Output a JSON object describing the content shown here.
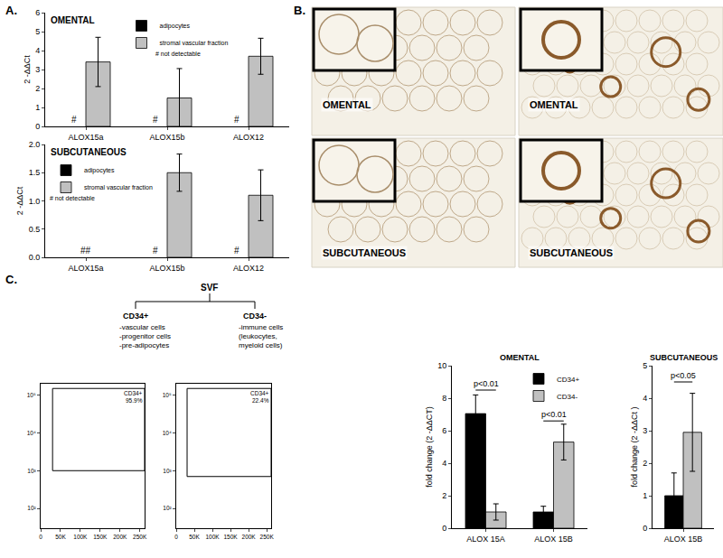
{
  "panel_labels": [
    "A.",
    "B.",
    "C."
  ],
  "images": [
    {
      "label": "OMENTAL"
    },
    {
      "label": "OMENTAL"
    },
    {
      "label": "SUBCUTANEOUS"
    },
    {
      "label": "SUBCUTANEOUS"
    }
  ],
  "diagram": {
    "root": "SVF",
    "branches": [
      {
        "label": "CD34+",
        "items": [
          "-vascular cells",
          "-progenitor cells",
          "-pre-adipocytes"
        ]
      },
      {
        "label": "CD34-",
        "items": [
          "-immune cells",
          "(leukocytes,",
          "myeloid cells)"
        ]
      }
    ]
  },
  "chart_data": [
    {
      "type": "bar",
      "title": "OMENTAL",
      "y_label": "2 -ΔΔCt",
      "categories": [
        "ALOX15a",
        "ALOX15b",
        "ALOX12"
      ],
      "series": [
        {
          "name": "adipocytes",
          "color": "#000000",
          "values": [
            null,
            null,
            null
          ],
          "errors": [
            null,
            null,
            null
          ]
        },
        {
          "name": "stromal vascular fraction",
          "color": "#c0c0c0",
          "values": [
            3.4,
            1.5,
            3.7
          ],
          "errors": [
            1.3,
            1.55,
            0.95
          ]
        }
      ],
      "ylim": [
        0,
        6
      ],
      "yticks": [
        0,
        1,
        2,
        3,
        4,
        5,
        6
      ],
      "legend": "top",
      "note": "# not detectable",
      "annotations": [
        {
          "text": "#",
          "category": "ALOX15a",
          "series": "adipocytes"
        },
        {
          "text": "#",
          "category": "ALOX15b",
          "series": "adipocytes"
        },
        {
          "text": "#",
          "category": "ALOX12",
          "series": "adipocytes"
        }
      ]
    },
    {
      "type": "bar",
      "title": "SUBCUTANEOUS",
      "y_label": "2 -ΔΔCt",
      "categories": [
        "ALOX15a",
        "ALOX15b",
        "ALOX12"
      ],
      "series": [
        {
          "name": "adipocytes",
          "color": "#000000",
          "values": [
            null,
            null,
            null
          ],
          "errors": [
            null,
            null,
            null
          ]
        },
        {
          "name": "stromal vascular fraction",
          "color": "#c0c0c0",
          "values": [
            null,
            1.5,
            1.1
          ],
          "errors": [
            null,
            0.33,
            0.45
          ]
        }
      ],
      "ylim": [
        0,
        2
      ],
      "yticks": [
        {
          "value": 0,
          "label": "0.0"
        },
        0.5,
        {
          "value": 1,
          "label": "1.0"
        },
        1.5,
        {
          "value": 2,
          "label": "2.0"
        }
      ],
      "legend": "top left",
      "note": "# not detectable",
      "annotations": [
        {
          "text": "##",
          "category": "ALOX15a"
        },
        {
          "text": "#",
          "category": "ALOX15b",
          "series": "adipocytes"
        },
        {
          "text": "#",
          "category": "ALOX12",
          "series": "adipocytes"
        }
      ]
    },
    {
      "type": "bar",
      "title": "OMENTAL",
      "y_label": "fold change (2 -ΔΔCT)",
      "categories": [
        "ALOX 15A",
        "ALOX 15B"
      ],
      "series": [
        {
          "name": "CD34+",
          "color": "#000000",
          "values": [
            7.05,
            1.0
          ],
          "errors": [
            1.15,
            0.35
          ]
        },
        {
          "name": "CD34-",
          "color": "#c0c0c0",
          "values": [
            1.0,
            5.3
          ],
          "errors": [
            0.5,
            1.1
          ]
        }
      ],
      "ylim": [
        0,
        10
      ],
      "yticks": [
        0,
        2,
        4,
        6,
        8,
        10
      ],
      "legend": "top right",
      "comparisons": [
        {
          "category": "ALOX 15A",
          "y": 8.5,
          "text": "p<0.01"
        },
        {
          "category": "ALOX 15B",
          "y": 6.6,
          "text": "p<0.01"
        }
      ]
    },
    {
      "type": "bar",
      "title": "SUBCUTANEOUS",
      "y_label": "fold change (2 -ΔΔCt )",
      "categories": [
        "ALOX 15B"
      ],
      "series": [
        {
          "name": "CD34+",
          "color": "#000000",
          "values": [
            1.0
          ],
          "errors": [
            0.7
          ]
        },
        {
          "name": "CD34-",
          "color": "#c0c0c0",
          "values": [
            2.95
          ],
          "errors": [
            1.2
          ]
        }
      ],
      "ylim": [
        0,
        5
      ],
      "yticks": [
        0,
        1,
        2,
        3,
        4,
        5
      ],
      "comparisons": [
        {
          "category": "ALOX 15B",
          "y": 4.5,
          "text": "p<0.05"
        }
      ]
    },
    {
      "type": "scatter",
      "log": "y",
      "xlim": [
        0,
        262144
      ],
      "xticks": [
        0,
        {
          "value": 50000,
          "label": "50K"
        },
        {
          "value": 100000,
          "label": "100K"
        },
        {
          "value": 150000,
          "label": "150K"
        },
        {
          "value": 200000,
          "label": "200K"
        },
        {
          "value": 250000,
          "label": "250K"
        }
      ],
      "ylim": [
        30,
        200000
      ],
      "yticks": [
        {
          "value": 100,
          "label": "10²"
        },
        {
          "value": 1000,
          "label": "10³"
        },
        {
          "value": 10000,
          "label": "10⁴"
        },
        {
          "value": 100000,
          "label": "10⁵"
        }
      ],
      "gate": {
        "x": [
          30000,
          262144
        ],
        "y": [
          1000,
          150000
        ]
      },
      "gate_texts": [
        "CD34+",
        "95.9%"
      ]
    },
    {
      "type": "scatter",
      "log": "y",
      "xlim": [
        0,
        262144
      ],
      "xticks": [
        0,
        {
          "value": 50000,
          "label": "50K"
        },
        {
          "value": 100000,
          "label": "100K"
        },
        {
          "value": 150000,
          "label": "150K"
        },
        {
          "value": 200000,
          "label": "200K"
        },
        {
          "value": 250000,
          "label": "250K"
        }
      ],
      "ylim": [
        30,
        200000
      ],
      "yticks": [
        {
          "value": 100,
          "label": "10²"
        },
        {
          "value": 1000,
          "label": "10³"
        },
        {
          "value": 10000,
          "label": "10⁴"
        },
        {
          "value": 100000,
          "label": "10⁵"
        }
      ],
      "gate": {
        "x": [
          30000,
          262144
        ],
        "y": [
          700,
          150000
        ]
      },
      "gate_texts": [
        "CD34+",
        "22.4%"
      ]
    }
  ]
}
